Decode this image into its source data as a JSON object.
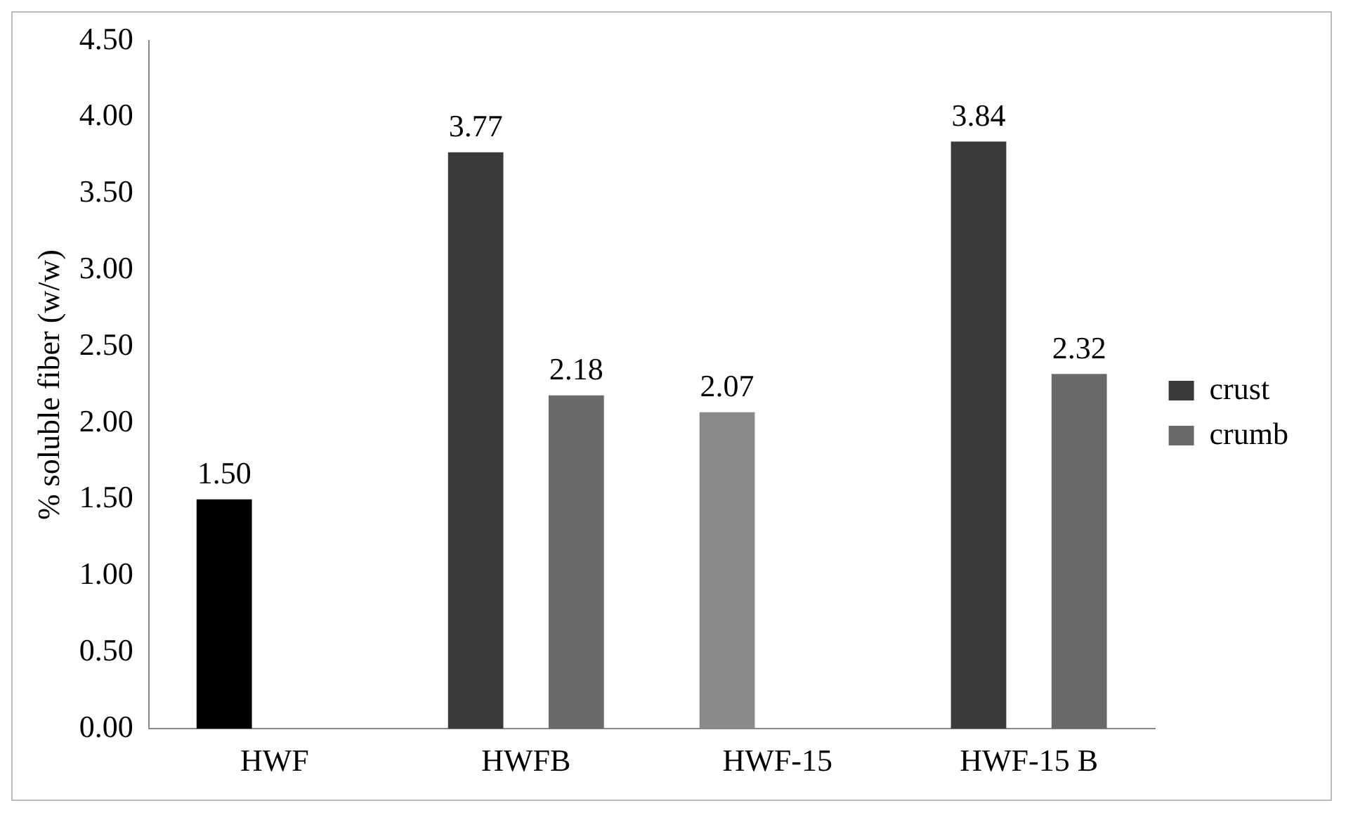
{
  "chart_data": {
    "type": "bar",
    "ylabel": "% soluble fiber (w/w)",
    "categories": [
      "HWF",
      "HWFB",
      "HWF-15",
      "HWF-15 B"
    ],
    "series": [
      {
        "name": "crust",
        "color": "#3a3a3a",
        "colors": [
          "#000000",
          "#3a3a3a",
          "#8a8a8a",
          "#3a3a3a"
        ],
        "values": [
          1.5,
          3.77,
          2.07,
          3.84
        ],
        "value_labels": [
          "1.50",
          "3.77",
          "2.07",
          "3.84"
        ]
      },
      {
        "name": "crumb",
        "color": "#6a6a6a",
        "values": [
          null,
          2.18,
          null,
          2.32
        ],
        "value_labels": [
          null,
          "2.18",
          null,
          "2.32"
        ]
      }
    ],
    "ylim": [
      0,
      4.5
    ],
    "yticks": [
      {
        "value": 0,
        "label": "0.00"
      },
      {
        "value": 0.5,
        "label": "0.50"
      },
      {
        "value": 1,
        "label": "1.00"
      },
      {
        "value": 1.5,
        "label": "1.50"
      },
      {
        "value": 2,
        "label": "2.00"
      },
      {
        "value": 2.5,
        "label": "2.50"
      },
      {
        "value": 3,
        "label": "3.00"
      },
      {
        "value": 3.5,
        "label": "3.50"
      },
      {
        "value": 4,
        "label": "4.00"
      },
      {
        "value": 4.5,
        "label": "4.50"
      }
    ],
    "grid": false,
    "legend": "right"
  }
}
